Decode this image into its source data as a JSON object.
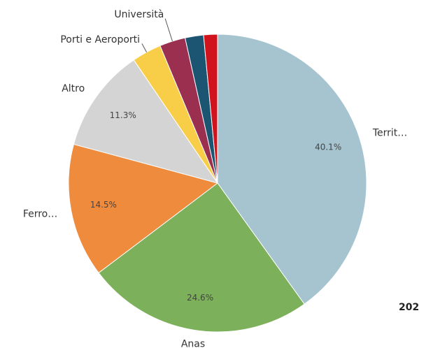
{
  "chart_data": {
    "type": "pie",
    "categories": [
      "Territ…",
      "Anas",
      "Ferro…",
      "Altro",
      "Porti e Aeroporti",
      "Università",
      null,
      null
    ],
    "values": [
      40.1,
      24.6,
      14.5,
      11.3,
      3.2,
      2.8,
      2.0,
      1.5
    ],
    "value_labels": [
      "40.1%",
      "24.6%",
      "14.5%",
      "11.3%",
      null,
      null,
      null,
      null
    ],
    "colors": [
      "#a6c4d0",
      "#7cb05b",
      "#ef8b3d",
      "#d4d4d4",
      "#f8cd47",
      "#9a2f4f",
      "#1c5571",
      "#d0131c"
    ],
    "annotation": "202"
  }
}
